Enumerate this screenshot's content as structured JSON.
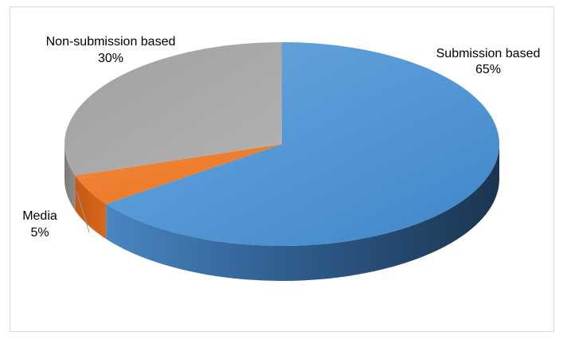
{
  "chart_data": {
    "type": "pie",
    "title": "",
    "style": "3d",
    "slices": [
      {
        "label": "Submission based",
        "pct_text": "65%",
        "value": 65,
        "color": "#5b9bd5"
      },
      {
        "label": "Media",
        "pct_text": "5%",
        "value": 5,
        "color": "#ed7d31"
      },
      {
        "label": "Non-submission based",
        "pct_text": "30%",
        "value": 30,
        "color": "#a5a5a5"
      }
    ],
    "legend": "none",
    "data_labels": "outside"
  }
}
